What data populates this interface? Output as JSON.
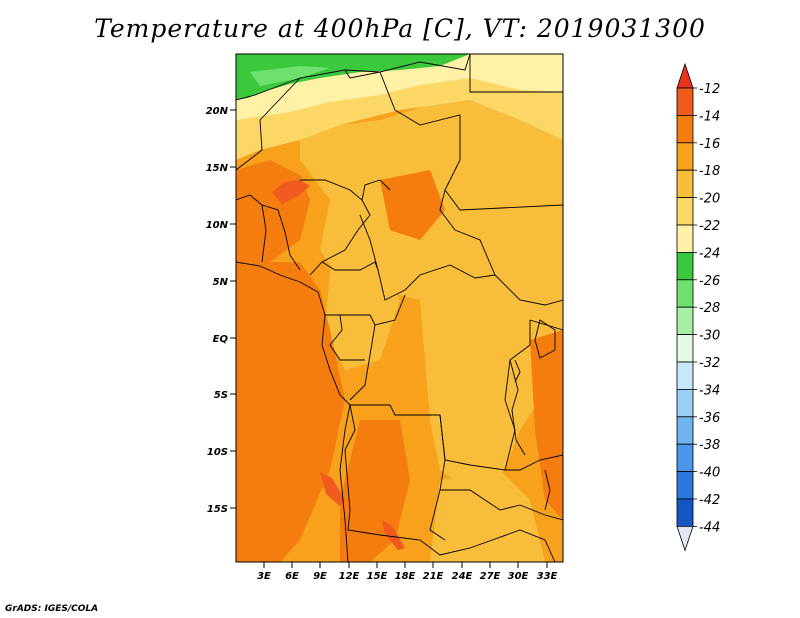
{
  "title": "Temperature at 400hPa [C], VT: 2019031300",
  "map": {
    "lat_labels": [
      "20N",
      "15N",
      "10N",
      "5N",
      "EQ",
      "5S",
      "10S",
      "15S"
    ],
    "lon_labels": [
      "3E",
      "6E",
      "9E",
      "12E",
      "15E",
      "18E",
      "21E",
      "24E",
      "27E",
      "30E",
      "33E"
    ]
  },
  "colorbar": {
    "labels": [
      "-12",
      "-14",
      "-16",
      "-18",
      "-20",
      "-22",
      "-24",
      "-26",
      "-28",
      "-30",
      "-32",
      "-34",
      "-36",
      "-38",
      "-40",
      "-42",
      "-44"
    ],
    "colors": [
      "#f05a1e",
      "#f57d0f",
      "#f7a11d",
      "#f9bd3c",
      "#fbd765",
      "#fff2a6",
      "#3cc83c",
      "#6ee06e",
      "#a6f0a6",
      "#e1fae1",
      "#c7e8fa",
      "#9ad0f5",
      "#6eb5f0",
      "#4a96eb",
      "#2a78dc",
      "#1356c4",
      "#0a1e82"
    ],
    "top_color": "#e8321e",
    "bottom_color": "#e1e6f5"
  },
  "footer": "GrADS: IGES/COLA"
}
